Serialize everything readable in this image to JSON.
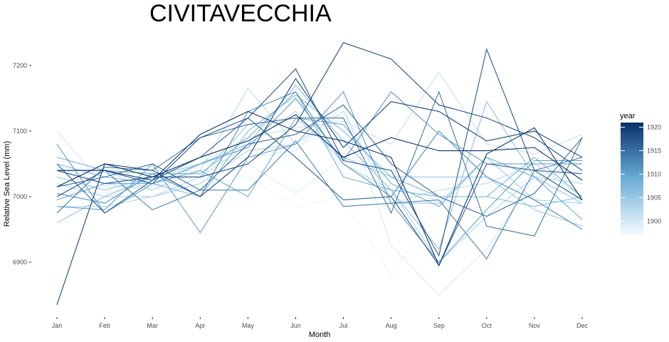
{
  "chart_data": {
    "type": "line",
    "title": "CIVITAVECCHIA",
    "xlabel": "Month",
    "ylabel": "Relative Sea Level (mm)",
    "categories": [
      "Jan",
      "Feb",
      "Mar",
      "Apr",
      "May",
      "Jun",
      "Jul",
      "Aug",
      "Sep",
      "Oct",
      "Nov",
      "Dec"
    ],
    "y_ticks": [
      6900,
      7000,
      7100,
      7200
    ],
    "ylim": [
      6825,
      7245
    ],
    "grid": false,
    "legend": {
      "title": "year",
      "position": "right",
      "type": "colorbar",
      "range": [
        1897,
        1921
      ],
      "ticks": [
        1900,
        1905,
        1910,
        1915,
        1920
      ],
      "low_color": "#f7fbff",
      "high_color": "#08306b"
    },
    "series": [
      {
        "year": 1897,
        "values": [
          7050,
          7000,
          7020,
          7030,
          7080,
          7085,
          7205,
          7030,
          6990,
          7050,
          7040,
          7050
        ]
      },
      {
        "year": 1898,
        "values": [
          7040,
          7010,
          7000,
          7015,
          7030,
          6985,
          7000,
          6880,
          6990,
          6950,
          6975,
          6990
        ]
      },
      {
        "year": 1899,
        "values": [
          7010,
          7005,
          7020,
          7010,
          7050,
          7005,
          7060,
          7040,
          6990,
          7000,
          7030,
          7040
        ]
      },
      {
        "year": 1900,
        "values": [
          7100,
          7015,
          7015,
          7050,
          7060,
          7070,
          7140,
          6925,
          6850,
          6920,
          7030,
          7050
        ]
      },
      {
        "year": 1901,
        "values": [
          7045,
          7020,
          7010,
          7050,
          7090,
          7105,
          7115,
          7080,
          7190,
          7080,
          7065,
          7095
        ]
      },
      {
        "year": 1902,
        "values": [
          7000,
          7040,
          7010,
          7040,
          7165,
          7080,
          7130,
          6990,
          7010,
          7020,
          7050,
          7000
        ]
      },
      {
        "year": 1903,
        "values": [
          6985,
          6985,
          7000,
          7030,
          7080,
          7130,
          7050,
          7010,
          6900,
          6970,
          7030,
          7020
        ]
      },
      {
        "year": 1904,
        "values": [
          7020,
          7000,
          7000,
          7020,
          7070,
          7080,
          7160,
          6990,
          6990,
          7060,
          6995,
          6990
        ]
      },
      {
        "year": 1905,
        "values": [
          7030,
          7010,
          7030,
          7030,
          7110,
          7120,
          7060,
          7030,
          7030,
          7030,
          6980,
          6955
        ]
      },
      {
        "year": 1906,
        "values": [
          6960,
          7000,
          7030,
          7050,
          7080,
          7170,
          7085,
          7010,
          6920,
          7145,
          7030,
          6990
        ]
      },
      {
        "year": 1907,
        "values": [
          7050,
          7030,
          7020,
          7000,
          7100,
          7155,
          7100,
          7030,
          7000,
          7000,
          6985,
          7000
        ]
      },
      {
        "year": 1908,
        "values": [
          7060,
          7040,
          7035,
          7035,
          7090,
          7160,
          7030,
          7010,
          7000,
          7000,
          7060,
          7000
        ]
      },
      {
        "year": 1909,
        "values": [
          6995,
          7020,
          7020,
          7040,
          7000,
          7120,
          7110,
          7020,
          6985,
          7060,
          7030,
          6965
        ]
      },
      {
        "year": 1910,
        "values": [
          6985,
          6980,
          7050,
          6945,
          7060,
          7080,
          7160,
          6990,
          6900,
          6980,
          7055,
          7055
        ]
      },
      {
        "year": 1911,
        "values": [
          7080,
          6975,
          7020,
          7050,
          7075,
          7150,
          7055,
          7160,
          7095,
          7050,
          7050,
          7050
        ]
      },
      {
        "year": 1912,
        "values": [
          7005,
          6990,
          7035,
          7000,
          7130,
          7160,
          7050,
          7000,
          7100,
          7030,
          6995,
          6950
        ]
      },
      {
        "year": 1913,
        "values": [
          7040,
          7040,
          6980,
          7010,
          7010,
          7085,
          6985,
          6990,
          6995,
          6905,
          7040,
          7060
        ]
      },
      {
        "year": 1914,
        "values": [
          6975,
          7045,
          7040,
          7090,
          7110,
          7120,
          7120,
          6975,
          7160,
          6955,
          6940,
          7090
        ]
      },
      {
        "year": 1915,
        "values": [
          7015,
          7030,
          7050,
          7010,
          7080,
          7095,
          7140,
          7050,
          7000,
          6970,
          7005,
          7090
        ]
      },
      {
        "year": 1916,
        "values": [
          7050,
          6975,
          7025,
          7060,
          7120,
          7060,
          6995,
          7000,
          6895,
          7050,
          7040,
          7035
        ]
      },
      {
        "year": 1917,
        "values": [
          7000,
          7040,
          7020,
          7090,
          7120,
          7195,
          7055,
          7040,
          6910,
          7225,
          7040,
          6995
        ]
      },
      {
        "year": 1918,
        "values": [
          7040,
          7020,
          7030,
          7030,
          7050,
          7110,
          7235,
          7210,
          7140,
          7120,
          7090,
          7040
        ]
      },
      {
        "year": 1919,
        "values": [
          6835,
          7050,
          7040,
          7000,
          7060,
          7180,
          7075,
          7145,
          7130,
          7085,
          7100,
          7060
        ]
      },
      {
        "year": 1920,
        "values": [
          7040,
          7040,
          7025,
          7095,
          7130,
          7100,
          7085,
          7060,
          6895,
          7065,
          7105,
          6995
        ]
      },
      {
        "year": 1921,
        "values": [
          7015,
          7050,
          7030,
          7060,
          7085,
          7125,
          7060,
          7090,
          7070,
          7070,
          7075,
          7025
        ]
      }
    ]
  }
}
